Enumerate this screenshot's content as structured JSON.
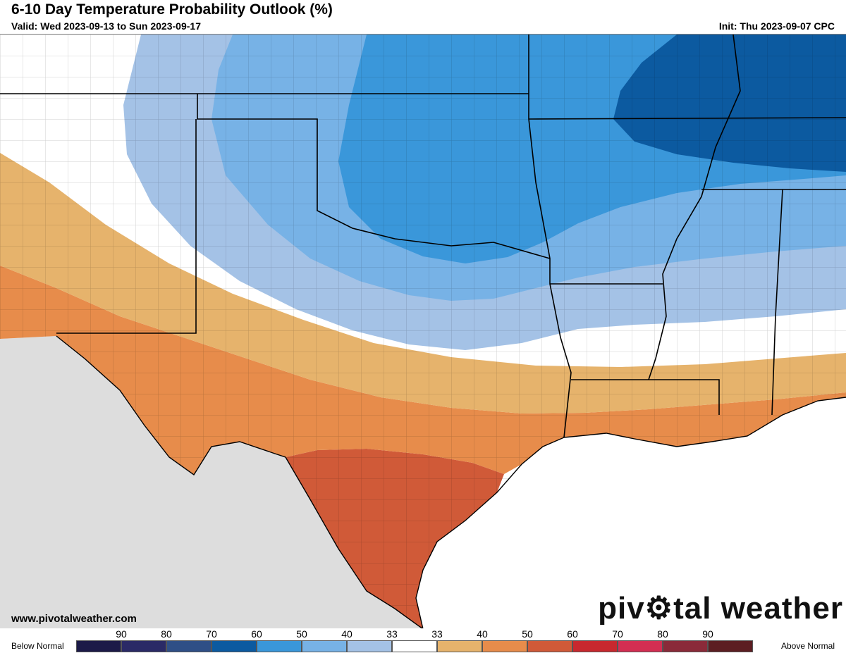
{
  "header": {
    "title": "6-10 Day Temperature Probability Outlook (%)",
    "valid": "Valid: Wed 2023-09-13 to Sun 2023-09-17",
    "init": "Init: Thu 2023-09-07 CPC"
  },
  "footer": {
    "website": "www.pivotalweather.com",
    "logo_text_left": "piv",
    "logo_text_right": "tal weather"
  },
  "legend": {
    "below_label": "Below Normal",
    "above_label": "Above Normal",
    "ticks": [
      "90",
      "80",
      "70",
      "60",
      "50",
      "40",
      "33",
      "33",
      "40",
      "50",
      "60",
      "70",
      "80",
      "90"
    ],
    "swatches": [
      {
        "name": "below-90",
        "color": "#1c1a48"
      },
      {
        "name": "below-80",
        "color": "#2a2a66"
      },
      {
        "name": "below-70",
        "color": "#2f4f86"
      },
      {
        "name": "below-60",
        "color": "#0c5aa0"
      },
      {
        "name": "below-50",
        "color": "#3a97da"
      },
      {
        "name": "below-40",
        "color": "#77b2e6"
      },
      {
        "name": "below-33",
        "color": "#a4c2e6"
      },
      {
        "name": "normal",
        "color": "#ffffff"
      },
      {
        "name": "above-33",
        "color": "#e6b36c"
      },
      {
        "name": "above-40",
        "color": "#e78c4b"
      },
      {
        "name": "above-50",
        "color": "#d05a38"
      },
      {
        "name": "above-60",
        "color": "#c8282e"
      },
      {
        "name": "above-70",
        "color": "#d32e52"
      },
      {
        "name": "above-80",
        "color": "#8a2a39"
      },
      {
        "name": "above-90",
        "color": "#5c1e22"
      }
    ]
  },
  "map": {
    "colors": {
      "outside": "#dddddd",
      "gulf": "#ffffff",
      "neutral": "#ffffff",
      "below33": "#a4c2e6",
      "below40": "#77b2e6",
      "below50": "#3a97da",
      "below60": "#0c5aa0",
      "above33": "#e6b36c",
      "above40": "#e78c4b",
      "above50": "#d05a38",
      "border_state": "#000000",
      "border_county": "#7a7a7a"
    }
  }
}
